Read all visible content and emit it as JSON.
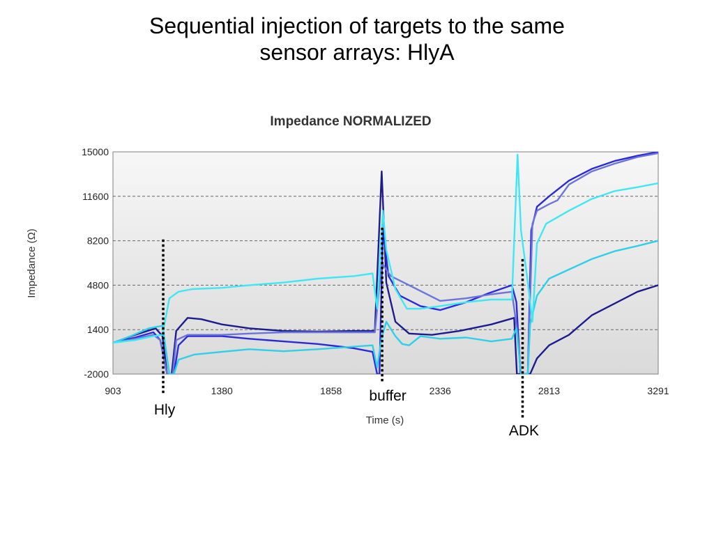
{
  "slide": {
    "title_line1": "Sequential injection of targets to the same",
    "title_line2": "sensor arrays: HlyA"
  },
  "chart_data": {
    "type": "line",
    "title": "Impedance NORMALIZED",
    "xlabel": "Time (s)",
    "ylabel": "Impedance (Ω)",
    "xlim": [
      903,
      3291
    ],
    "ylim": [
      -2000,
      15000
    ],
    "x_ticks": [
      903,
      1380,
      1858,
      2336,
      2813,
      3291
    ],
    "y_ticks": [
      -2000,
      1400,
      4800,
      8200,
      11600,
      15000
    ],
    "grid": "horizontal",
    "legend": "none",
    "series": [
      {
        "color": "#1c1c8c",
        "points": [
          [
            903,
            400
          ],
          [
            1000,
            1000
          ],
          [
            1090,
            1500
          ],
          [
            1120,
            900
          ],
          [
            1140,
            -2000
          ],
          [
            1160,
            -2000
          ],
          [
            1180,
            1300
          ],
          [
            1230,
            2300
          ],
          [
            1290,
            2200
          ],
          [
            1380,
            1800
          ],
          [
            1500,
            1500
          ],
          [
            1650,
            1300
          ],
          [
            1800,
            1250
          ],
          [
            1960,
            1300
          ],
          [
            2050,
            1300
          ],
          [
            2080,
            13500
          ],
          [
            2100,
            5000
          ],
          [
            2140,
            2000
          ],
          [
            2200,
            1100
          ],
          [
            2300,
            1000
          ],
          [
            2420,
            1300
          ],
          [
            2560,
            1800
          ],
          [
            2660,
            2300
          ],
          [
            2672,
            -2000
          ],
          [
            2700,
            -2000
          ],
          [
            2730,
            -2000
          ],
          [
            2760,
            -800
          ],
          [
            2813,
            200
          ],
          [
            2900,
            1000
          ],
          [
            3000,
            2500
          ],
          [
            3100,
            3400
          ],
          [
            3200,
            4300
          ],
          [
            3291,
            4800
          ]
        ]
      },
      {
        "color": "#2a2ad8",
        "points": [
          [
            903,
            400
          ],
          [
            1000,
            800
          ],
          [
            1080,
            1200
          ],
          [
            1110,
            600
          ],
          [
            1140,
            -2000
          ],
          [
            1170,
            -2000
          ],
          [
            1190,
            200
          ],
          [
            1230,
            900
          ],
          [
            1380,
            900
          ],
          [
            1500,
            700
          ],
          [
            1650,
            500
          ],
          [
            1800,
            300
          ],
          [
            1950,
            0
          ],
          [
            2040,
            -300
          ],
          [
            2060,
            -2000
          ],
          [
            2070,
            -2000
          ],
          [
            2085,
            9000
          ],
          [
            2110,
            5500
          ],
          [
            2160,
            4000
          ],
          [
            2250,
            3200
          ],
          [
            2336,
            2900
          ],
          [
            2450,
            3500
          ],
          [
            2550,
            4200
          ],
          [
            2650,
            4800
          ],
          [
            2670,
            3500
          ],
          [
            2688,
            -2000
          ],
          [
            2720,
            -2000
          ],
          [
            2735,
            9000
          ],
          [
            2760,
            10800
          ],
          [
            2813,
            11600
          ],
          [
            2900,
            12800
          ],
          [
            3000,
            13700
          ],
          [
            3100,
            14300
          ],
          [
            3200,
            14700
          ],
          [
            3291,
            15000
          ]
        ]
      },
      {
        "color": "#6a74dc",
        "points": [
          [
            903,
            400
          ],
          [
            1000,
            700
          ],
          [
            1080,
            1000
          ],
          [
            1110,
            600
          ],
          [
            1140,
            -2000
          ],
          [
            1165,
            -2000
          ],
          [
            1180,
            600
          ],
          [
            1230,
            1000
          ],
          [
            1380,
            1000
          ],
          [
            1500,
            1100
          ],
          [
            1650,
            1200
          ],
          [
            1800,
            1200
          ],
          [
            1960,
            1200
          ],
          [
            2050,
            1200
          ],
          [
            2080,
            6500
          ],
          [
            2120,
            5500
          ],
          [
            2200,
            4800
          ],
          [
            2336,
            3600
          ],
          [
            2450,
            3800
          ],
          [
            2560,
            4100
          ],
          [
            2650,
            4300
          ],
          [
            2672,
            1500
          ],
          [
            2690,
            -2000
          ],
          [
            2720,
            -2000
          ],
          [
            2740,
            9500
          ],
          [
            2760,
            10500
          ],
          [
            2813,
            11000
          ],
          [
            2850,
            11300
          ],
          [
            2900,
            12500
          ],
          [
            3000,
            13500
          ],
          [
            3100,
            14100
          ],
          [
            3200,
            14600
          ],
          [
            3291,
            14900
          ]
        ]
      },
      {
        "color": "#2fcfe8",
        "points": [
          [
            903,
            400
          ],
          [
            980,
            900
          ],
          [
            1060,
            1500
          ],
          [
            1120,
            1700
          ],
          [
            1150,
            -2000
          ],
          [
            1170,
            -2000
          ],
          [
            1190,
            -900
          ],
          [
            1260,
            -500
          ],
          [
            1380,
            -300
          ],
          [
            1500,
            -100
          ],
          [
            1650,
            -250
          ],
          [
            1800,
            -100
          ],
          [
            1960,
            100
          ],
          [
            2040,
            200
          ],
          [
            2060,
            -1500
          ],
          [
            2080,
            800
          ],
          [
            2100,
            2000
          ],
          [
            2140,
            900
          ],
          [
            2170,
            300
          ],
          [
            2200,
            200
          ],
          [
            2250,
            900
          ],
          [
            2336,
            700
          ],
          [
            2450,
            800
          ],
          [
            2560,
            500
          ],
          [
            2650,
            700
          ],
          [
            2670,
            1500
          ],
          [
            2690,
            -2000
          ],
          [
            2720,
            -2000
          ],
          [
            2730,
            1800
          ],
          [
            2760,
            4000
          ],
          [
            2813,
            5300
          ],
          [
            2900,
            6000
          ],
          [
            3000,
            6800
          ],
          [
            3100,
            7400
          ],
          [
            3200,
            7800
          ],
          [
            3291,
            8200
          ]
        ]
      },
      {
        "color": "#3ee8f2",
        "points": [
          [
            903,
            400
          ],
          [
            1000,
            600
          ],
          [
            1080,
            900
          ],
          [
            1120,
            1000
          ],
          [
            1150,
            3800
          ],
          [
            1190,
            4300
          ],
          [
            1250,
            4500
          ],
          [
            1380,
            4600
          ],
          [
            1500,
            4800
          ],
          [
            1650,
            5000
          ],
          [
            1800,
            5300
          ],
          [
            1960,
            5500
          ],
          [
            2040,
            5700
          ],
          [
            2060,
            3000
          ],
          [
            2085,
            10500
          ],
          [
            2100,
            7500
          ],
          [
            2140,
            4500
          ],
          [
            2190,
            3000
          ],
          [
            2250,
            3000
          ],
          [
            2336,
            3200
          ],
          [
            2450,
            3500
          ],
          [
            2560,
            3700
          ],
          [
            2650,
            3700
          ],
          [
            2675,
            14800
          ],
          [
            2690,
            9000
          ],
          [
            2720,
            5000
          ],
          [
            2740,
            2000
          ],
          [
            2760,
            8000
          ],
          [
            2800,
            9500
          ],
          [
            2900,
            10500
          ],
          [
            3000,
            11400
          ],
          [
            3100,
            12000
          ],
          [
            3200,
            12300
          ],
          [
            3291,
            12600
          ]
        ]
      }
    ],
    "markers": [
      {
        "label": "Hly",
        "x": 1123,
        "y_top": 8300,
        "y_bottom": -2000
      },
      {
        "label": "buffer",
        "x": 2082,
        "y_top": 9200,
        "y_bottom": -2000
      },
      {
        "label": "ADK",
        "x": 2697,
        "y_top": 6800,
        "y_bottom": -2000
      }
    ]
  }
}
